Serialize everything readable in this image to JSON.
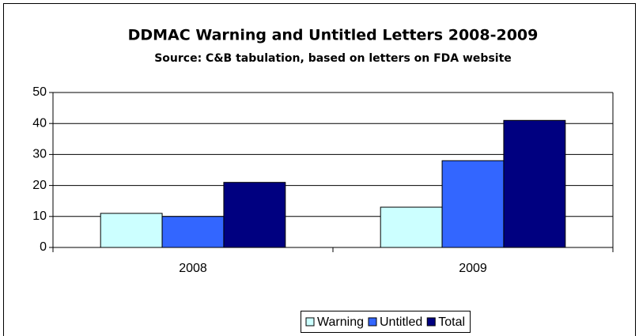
{
  "chart_data": {
    "type": "bar",
    "title": "DDMAC Warning and Untitled Letters 2008-2009",
    "subtitle": "Source: C&B tabulation, based on letters on FDA website",
    "categories": [
      "2008",
      "2009"
    ],
    "series": [
      {
        "name": "Warning",
        "color": "#ccffff",
        "values": [
          11,
          13
        ]
      },
      {
        "name": "Untitled",
        "color": "#3366ff",
        "values": [
          10,
          28
        ]
      },
      {
        "name": "Total",
        "color": "#000080",
        "values": [
          21,
          41
        ]
      }
    ],
    "ylim": [
      0,
      50
    ],
    "yticks": [
      0,
      10,
      20,
      30,
      40,
      50
    ],
    "grid": true,
    "legend": "bottom"
  }
}
